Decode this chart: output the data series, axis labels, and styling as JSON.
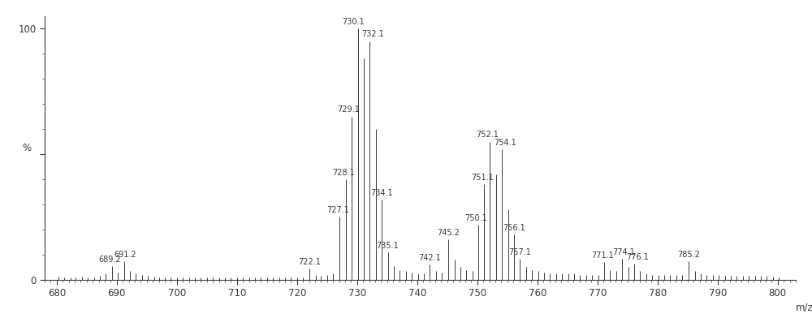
{
  "xlim": [
    678,
    803
  ],
  "ylim": [
    0,
    105
  ],
  "xlabel": "m/z",
  "ylabel": "%",
  "xticks": [
    680,
    690,
    700,
    710,
    720,
    730,
    740,
    750,
    760,
    770,
    780,
    790,
    800
  ],
  "yticks": [
    0,
    50,
    100
  ],
  "ytick_labels": [
    "0",
    "",
    "100"
  ],
  "background_color": "#ffffff",
  "line_color": "#3a3a3a",
  "peaks": [
    {
      "mz": 680.3,
      "intensity": 1.2,
      "label": null
    },
    {
      "mz": 681.3,
      "intensity": 1.0,
      "label": null
    },
    {
      "mz": 682.3,
      "intensity": 0.8,
      "label": null
    },
    {
      "mz": 683.2,
      "intensity": 1.0,
      "label": null
    },
    {
      "mz": 684.2,
      "intensity": 1.2,
      "label": null
    },
    {
      "mz": 685.2,
      "intensity": 0.8,
      "label": null
    },
    {
      "mz": 686.2,
      "intensity": 1.0,
      "label": null
    },
    {
      "mz": 687.2,
      "intensity": 1.5,
      "label": null
    },
    {
      "mz": 688.2,
      "intensity": 2.5,
      "label": null
    },
    {
      "mz": 689.2,
      "intensity": 5.5,
      "label": "689.2"
    },
    {
      "mz": 690.2,
      "intensity": 3.0,
      "label": null
    },
    {
      "mz": 691.2,
      "intensity": 7.5,
      "label": "691.2"
    },
    {
      "mz": 692.2,
      "intensity": 3.5,
      "label": null
    },
    {
      "mz": 693.2,
      "intensity": 2.5,
      "label": null
    },
    {
      "mz": 694.2,
      "intensity": 2.0,
      "label": null
    },
    {
      "mz": 695.2,
      "intensity": 1.5,
      "label": null
    },
    {
      "mz": 696.2,
      "intensity": 1.2,
      "label": null
    },
    {
      "mz": 697.0,
      "intensity": 1.0,
      "label": null
    },
    {
      "mz": 698.0,
      "intensity": 1.0,
      "label": null
    },
    {
      "mz": 699.0,
      "intensity": 1.0,
      "label": null
    },
    {
      "mz": 700.0,
      "intensity": 0.8,
      "label": null
    },
    {
      "mz": 701.0,
      "intensity": 0.8,
      "label": null
    },
    {
      "mz": 702.0,
      "intensity": 0.8,
      "label": null
    },
    {
      "mz": 703.0,
      "intensity": 0.8,
      "label": null
    },
    {
      "mz": 704.0,
      "intensity": 0.8,
      "label": null
    },
    {
      "mz": 705.0,
      "intensity": 0.8,
      "label": null
    },
    {
      "mz": 706.0,
      "intensity": 0.8,
      "label": null
    },
    {
      "mz": 707.0,
      "intensity": 0.8,
      "label": null
    },
    {
      "mz": 708.0,
      "intensity": 0.8,
      "label": null
    },
    {
      "mz": 709.0,
      "intensity": 0.8,
      "label": null
    },
    {
      "mz": 710.0,
      "intensity": 0.8,
      "label": null
    },
    {
      "mz": 711.0,
      "intensity": 0.8,
      "label": null
    },
    {
      "mz": 712.0,
      "intensity": 0.8,
      "label": null
    },
    {
      "mz": 713.0,
      "intensity": 0.8,
      "label": null
    },
    {
      "mz": 714.0,
      "intensity": 0.8,
      "label": null
    },
    {
      "mz": 715.0,
      "intensity": 0.8,
      "label": null
    },
    {
      "mz": 716.0,
      "intensity": 0.8,
      "label": null
    },
    {
      "mz": 717.0,
      "intensity": 0.8,
      "label": null
    },
    {
      "mz": 718.0,
      "intensity": 0.8,
      "label": null
    },
    {
      "mz": 719.0,
      "intensity": 0.8,
      "label": null
    },
    {
      "mz": 720.0,
      "intensity": 1.0,
      "label": null
    },
    {
      "mz": 721.0,
      "intensity": 1.0,
      "label": null
    },
    {
      "mz": 722.1,
      "intensity": 4.5,
      "label": "722.1"
    },
    {
      "mz": 723.1,
      "intensity": 2.0,
      "label": null
    },
    {
      "mz": 724.0,
      "intensity": 1.5,
      "label": null
    },
    {
      "mz": 725.0,
      "intensity": 2.0,
      "label": null
    },
    {
      "mz": 726.0,
      "intensity": 2.5,
      "label": null
    },
    {
      "mz": 727.1,
      "intensity": 25.0,
      "label": "727.1"
    },
    {
      "mz": 728.1,
      "intensity": 40.0,
      "label": "728.1"
    },
    {
      "mz": 729.1,
      "intensity": 65.0,
      "label": "729.1"
    },
    {
      "mz": 730.1,
      "intensity": 100.0,
      "label": "730.1"
    },
    {
      "mz": 731.1,
      "intensity": 88.0,
      "label": null
    },
    {
      "mz": 732.1,
      "intensity": 95.0,
      "label": "732.1"
    },
    {
      "mz": 733.1,
      "intensity": 60.0,
      "label": null
    },
    {
      "mz": 734.1,
      "intensity": 32.0,
      "label": "734.1"
    },
    {
      "mz": 735.1,
      "intensity": 11.0,
      "label": "735.1"
    },
    {
      "mz": 736.1,
      "intensity": 5.5,
      "label": null
    },
    {
      "mz": 737.1,
      "intensity": 4.0,
      "label": null
    },
    {
      "mz": 738.1,
      "intensity": 3.5,
      "label": null
    },
    {
      "mz": 739.1,
      "intensity": 3.0,
      "label": null
    },
    {
      "mz": 740.1,
      "intensity": 2.5,
      "label": null
    },
    {
      "mz": 741.1,
      "intensity": 2.5,
      "label": null
    },
    {
      "mz": 742.1,
      "intensity": 6.0,
      "label": "742.1"
    },
    {
      "mz": 743.1,
      "intensity": 3.5,
      "label": null
    },
    {
      "mz": 744.1,
      "intensity": 3.0,
      "label": null
    },
    {
      "mz": 745.2,
      "intensity": 16.0,
      "label": "745.2"
    },
    {
      "mz": 746.2,
      "intensity": 8.0,
      "label": null
    },
    {
      "mz": 747.2,
      "intensity": 5.0,
      "label": null
    },
    {
      "mz": 748.2,
      "intensity": 4.0,
      "label": null
    },
    {
      "mz": 749.2,
      "intensity": 3.5,
      "label": null
    },
    {
      "mz": 750.1,
      "intensity": 22.0,
      "label": "750.1"
    },
    {
      "mz": 751.1,
      "intensity": 38.0,
      "label": "751.1"
    },
    {
      "mz": 752.1,
      "intensity": 55.0,
      "label": "752.1"
    },
    {
      "mz": 753.1,
      "intensity": 42.0,
      "label": null
    },
    {
      "mz": 754.1,
      "intensity": 52.0,
      "label": "754.1"
    },
    {
      "mz": 755.1,
      "intensity": 28.0,
      "label": null
    },
    {
      "mz": 756.1,
      "intensity": 18.0,
      "label": "756.1"
    },
    {
      "mz": 757.1,
      "intensity": 8.5,
      "label": "757.1"
    },
    {
      "mz": 758.1,
      "intensity": 5.0,
      "label": null
    },
    {
      "mz": 759.1,
      "intensity": 4.0,
      "label": null
    },
    {
      "mz": 760.1,
      "intensity": 3.5,
      "label": null
    },
    {
      "mz": 761.1,
      "intensity": 3.0,
      "label": null
    },
    {
      "mz": 762.1,
      "intensity": 2.5,
      "label": null
    },
    {
      "mz": 763.1,
      "intensity": 2.5,
      "label": null
    },
    {
      "mz": 764.1,
      "intensity": 2.5,
      "label": null
    },
    {
      "mz": 765.1,
      "intensity": 2.5,
      "label": null
    },
    {
      "mz": 766.1,
      "intensity": 2.5,
      "label": null
    },
    {
      "mz": 767.1,
      "intensity": 2.0,
      "label": null
    },
    {
      "mz": 768.1,
      "intensity": 2.0,
      "label": null
    },
    {
      "mz": 769.1,
      "intensity": 2.0,
      "label": null
    },
    {
      "mz": 770.1,
      "intensity": 2.0,
      "label": null
    },
    {
      "mz": 771.1,
      "intensity": 7.0,
      "label": "771.1"
    },
    {
      "mz": 772.1,
      "intensity": 4.0,
      "label": null
    },
    {
      "mz": 773.1,
      "intensity": 3.5,
      "label": null
    },
    {
      "mz": 774.1,
      "intensity": 8.5,
      "label": "774.1"
    },
    {
      "mz": 775.1,
      "intensity": 5.0,
      "label": null
    },
    {
      "mz": 776.1,
      "intensity": 6.5,
      "label": "776.1"
    },
    {
      "mz": 777.1,
      "intensity": 3.5,
      "label": null
    },
    {
      "mz": 778.1,
      "intensity": 2.5,
      "label": null
    },
    {
      "mz": 779.1,
      "intensity": 2.0,
      "label": null
    },
    {
      "mz": 780.1,
      "intensity": 2.0,
      "label": null
    },
    {
      "mz": 781.1,
      "intensity": 2.0,
      "label": null
    },
    {
      "mz": 782.1,
      "intensity": 2.0,
      "label": null
    },
    {
      "mz": 783.1,
      "intensity": 2.0,
      "label": null
    },
    {
      "mz": 784.1,
      "intensity": 2.0,
      "label": null
    },
    {
      "mz": 785.2,
      "intensity": 7.5,
      "label": "785.2"
    },
    {
      "mz": 786.2,
      "intensity": 3.5,
      "label": null
    },
    {
      "mz": 787.2,
      "intensity": 2.5,
      "label": null
    },
    {
      "mz": 788.2,
      "intensity": 2.0,
      "label": null
    },
    {
      "mz": 789.2,
      "intensity": 2.0,
      "label": null
    },
    {
      "mz": 790.2,
      "intensity": 2.0,
      "label": null
    },
    {
      "mz": 791.2,
      "intensity": 1.5,
      "label": null
    },
    {
      "mz": 792.2,
      "intensity": 1.5,
      "label": null
    },
    {
      "mz": 793.2,
      "intensity": 1.5,
      "label": null
    },
    {
      "mz": 794.2,
      "intensity": 1.5,
      "label": null
    },
    {
      "mz": 795.2,
      "intensity": 1.5,
      "label": null
    },
    {
      "mz": 796.2,
      "intensity": 1.5,
      "label": null
    },
    {
      "mz": 797.2,
      "intensity": 1.5,
      "label": null
    },
    {
      "mz": 798.2,
      "intensity": 1.5,
      "label": null
    },
    {
      "mz": 799.2,
      "intensity": 1.2,
      "label": null
    },
    {
      "mz": 800.2,
      "intensity": 1.0,
      "label": null
    }
  ],
  "label_fontsize": 7,
  "axis_fontsize": 8.5
}
